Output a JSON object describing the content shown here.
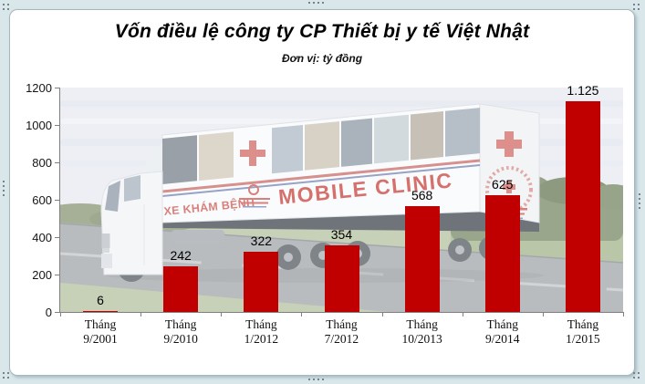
{
  "page": {
    "background_color": "#d9e7ea"
  },
  "chart_data": {
    "type": "bar",
    "title": "Vốn điều lệ công ty CP Thiết bị y tế Việt Nhật",
    "unit_label": "Đơn vị: tỷ đồng",
    "categories": [
      {
        "line1": "Tháng",
        "line2": "9/2001"
      },
      {
        "line1": "Tháng",
        "line2": "9/2010"
      },
      {
        "line1": "Tháng",
        "line2": "1/2012"
      },
      {
        "line1": "Tháng",
        "line2": "7/2012"
      },
      {
        "line1": "Tháng",
        "line2": "10/2013"
      },
      {
        "line1": "Tháng",
        "line2": "9/2014"
      },
      {
        "line1": "Tháng",
        "line2": "1/2015"
      }
    ],
    "values": [
      6,
      242,
      322,
      354,
      568,
      625,
      1125
    ],
    "value_labels": [
      "6",
      "242",
      "322",
      "354",
      "568",
      "625",
      "1.125"
    ],
    "ylim": [
      0,
      1200
    ],
    "yticks": [
      0,
      200,
      400,
      600,
      800,
      1000,
      1200
    ],
    "bar_color": "#c00000",
    "axis_color": "#7f7f7f",
    "gridlines": false,
    "legend": false,
    "background": {
      "description": "faded photo of a mobile clinic truck driving on a road",
      "truck_side_text": "XE KHÁM BỆNH",
      "truck_main_text": "MOBILE CLINIC"
    }
  }
}
